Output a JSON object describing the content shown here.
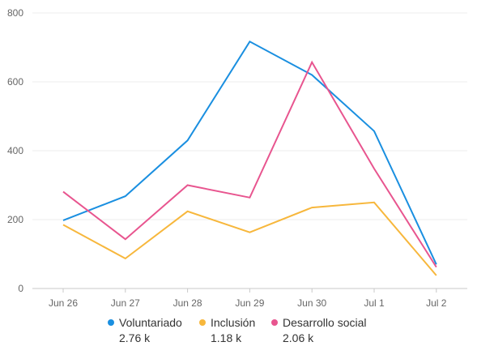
{
  "chart_data": {
    "type": "line",
    "title": "",
    "xlabel": "",
    "ylabel": "",
    "categories": [
      "Jun 26",
      "Jun 27",
      "Jun 28",
      "Jun 29",
      "Jun 30",
      "Jul 1",
      "Jul 2"
    ],
    "ylim": [
      0,
      800
    ],
    "yticks": [
      0,
      200,
      400,
      600,
      800
    ],
    "grid": true,
    "legend_position": "bottom",
    "series": [
      {
        "name": "Voluntariado",
        "total": "2.76 k",
        "color": "#1a8fe0",
        "values": [
          198,
          268,
          430,
          717,
          620,
          457,
          70
        ]
      },
      {
        "name": "Inclusión",
        "total": "1.18 k",
        "color": "#f7b73c",
        "values": [
          185,
          87,
          224,
          163,
          235,
          250,
          38
        ]
      },
      {
        "name": "Desarrollo social",
        "total": "2.06 k",
        "color": "#e8558f",
        "values": [
          281,
          143,
          300,
          264,
          657,
          348,
          62
        ]
      }
    ]
  }
}
